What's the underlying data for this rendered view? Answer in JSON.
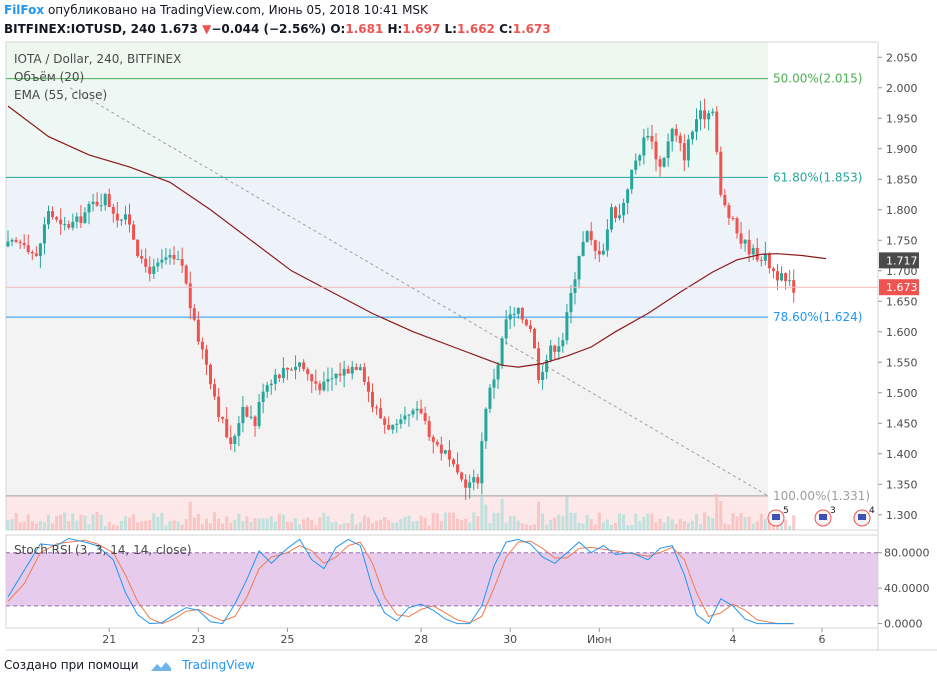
{
  "header": {
    "brand": "FilFox",
    "published": "опубликовано на TradingView.com, Июнь 05, 2018 10:41 MSK",
    "symbol_line": "BITFINEX:IOTUSD, 240",
    "last": "1.673",
    "change": "−0.044 (−2.56%)",
    "o_label": "O:",
    "o_val": "1.681",
    "h_label": "H:",
    "h_val": "1.697",
    "l_label": "L:",
    "l_val": "1.662",
    "c_label": "C:",
    "c_val": "1.673"
  },
  "legend": {
    "title": "IOTA / Dollar, 240, BITFINEX",
    "volume": "Объём (20)",
    "ema": "EMA (55, close)",
    "rsi": "Stoch RSI (3, 3, 14, 14, close)"
  },
  "footer": {
    "created": "Создано при помощи",
    "tradingview": "TradingView"
  },
  "chart_data": {
    "type": "candlestick",
    "price_axis": {
      "ylim": [
        1.275,
        2.075
      ],
      "ticks": [
        "2.050",
        "2.000",
        "1.950",
        "1.900",
        "1.850",
        "1.800",
        "1.750",
        "1.700",
        "1.650",
        "1.600",
        "1.550",
        "1.500",
        "1.450",
        "1.400",
        "1.350",
        "1.300"
      ]
    },
    "rsi_axis": {
      "ylim": [
        -5,
        100
      ],
      "ticks": [
        "80.0000",
        "40.0000",
        "0.0000"
      ],
      "band": [
        20,
        80
      ]
    },
    "x_ticks": [
      {
        "label": "21",
        "i": 25
      },
      {
        "label": "23",
        "i": 47
      },
      {
        "label": "25",
        "i": 69
      },
      {
        "label": "28",
        "i": 102
      },
      {
        "label": "30",
        "i": 124
      },
      {
        "label": "Июн",
        "i": 146
      },
      {
        "label": "4",
        "i": 179
      },
      {
        "label": "6",
        "i": 201
      }
    ],
    "candle_count": 195,
    "close_keypoints": [
      [
        0,
        1.74
      ],
      [
        4,
        1.75
      ],
      [
        7,
        1.72
      ],
      [
        10,
        1.8
      ],
      [
        13,
        1.77
      ],
      [
        17,
        1.78
      ],
      [
        21,
        1.81
      ],
      [
        24,
        1.82
      ],
      [
        27,
        1.79
      ],
      [
        30,
        1.78
      ],
      [
        33,
        1.71
      ],
      [
        36,
        1.7
      ],
      [
        39,
        1.72
      ],
      [
        43,
        1.71
      ],
      [
        46,
        1.61
      ],
      [
        49,
        1.55
      ],
      [
        52,
        1.47
      ],
      [
        55,
        1.41
      ],
      [
        58,
        1.48
      ],
      [
        61,
        1.45
      ],
      [
        63,
        1.51
      ],
      [
        66,
        1.53
      ],
      [
        69,
        1.54
      ],
      [
        72,
        1.55
      ],
      [
        75,
        1.52
      ],
      [
        78,
        1.51
      ],
      [
        81,
        1.53
      ],
      [
        84,
        1.54
      ],
      [
        87,
        1.55
      ],
      [
        90,
        1.48
      ],
      [
        93,
        1.45
      ],
      [
        96,
        1.44
      ],
      [
        99,
        1.46
      ],
      [
        102,
        1.47
      ],
      [
        105,
        1.42
      ],
      [
        108,
        1.4
      ],
      [
        111,
        1.36
      ],
      [
        114,
        1.35
      ],
      [
        116,
        1.36
      ],
      [
        118,
        1.48
      ],
      [
        121,
        1.55
      ],
      [
        123,
        1.62
      ],
      [
        126,
        1.63
      ],
      [
        129,
        1.61
      ],
      [
        131,
        1.53
      ],
      [
        134,
        1.57
      ],
      [
        137,
        1.59
      ],
      [
        139,
        1.66
      ],
      [
        141,
        1.73
      ],
      [
        143,
        1.76
      ],
      [
        145,
        1.73
      ],
      [
        147,
        1.74
      ],
      [
        149,
        1.8
      ],
      [
        151,
        1.79
      ],
      [
        153,
        1.84
      ],
      [
        155,
        1.88
      ],
      [
        158,
        1.93
      ],
      [
        161,
        1.87
      ],
      [
        164,
        1.93
      ],
      [
        167,
        1.89
      ],
      [
        170,
        1.95
      ],
      [
        173,
        1.96
      ],
      [
        174,
        1.97
      ],
      [
        176,
        1.82
      ],
      [
        178,
        1.79
      ],
      [
        181,
        1.75
      ],
      [
        184,
        1.73
      ],
      [
        187,
        1.72
      ],
      [
        189,
        1.7
      ],
      [
        192,
        1.68
      ],
      [
        194,
        1.673
      ]
    ],
    "ema_keypoints": [
      [
        0,
        1.97
      ],
      [
        10,
        1.92
      ],
      [
        20,
        1.89
      ],
      [
        30,
        1.87
      ],
      [
        40,
        1.845
      ],
      [
        50,
        1.8
      ],
      [
        60,
        1.75
      ],
      [
        70,
        1.7
      ],
      [
        80,
        1.665
      ],
      [
        90,
        1.63
      ],
      [
        100,
        1.6
      ],
      [
        110,
        1.575
      ],
      [
        118,
        1.555
      ],
      [
        122,
        1.545
      ],
      [
        126,
        1.542
      ],
      [
        132,
        1.548
      ],
      [
        138,
        1.56
      ],
      [
        144,
        1.575
      ],
      [
        150,
        1.6
      ],
      [
        158,
        1.63
      ],
      [
        166,
        1.665
      ],
      [
        174,
        1.698
      ],
      [
        180,
        1.718
      ],
      [
        186,
        1.727
      ],
      [
        190,
        1.728
      ],
      [
        196,
        1.725
      ],
      [
        202,
        1.72
      ]
    ],
    "fib_levels": [
      {
        "label": "50.00%(2.015)",
        "price": 2.015,
        "color": "#4caf50",
        "fill": "#eef8ee"
      },
      {
        "label": "61.80%(1.853)",
        "price": 1.853,
        "color": "#26a69a",
        "fill": "#edf7f4"
      },
      {
        "label": "78.60%(1.624)",
        "price": 1.624,
        "color": "#2196f3",
        "fill": "#eef3fa"
      },
      {
        "label": "100.00%(1.331)",
        "price": 1.331,
        "color": "#9e9e9e",
        "fill": "#f3f3f3"
      }
    ],
    "price_labels": [
      {
        "label": "1.717",
        "price": 1.717,
        "color": "#4a4a4a"
      },
      {
        "label": "1.673",
        "price": 1.673,
        "color": "#ef5350"
      }
    ],
    "rsi_k_keypoints": [
      [
        0,
        30
      ],
      [
        4,
        60
      ],
      [
        8,
        90
      ],
      [
        12,
        88
      ],
      [
        15,
        96
      ],
      [
        19,
        92
      ],
      [
        22,
        88
      ],
      [
        26,
        72
      ],
      [
        29,
        35
      ],
      [
        32,
        10
      ],
      [
        35,
        0
      ],
      [
        38,
        1
      ],
      [
        41,
        10
      ],
      [
        44,
        18
      ],
      [
        47,
        15
      ],
      [
        50,
        2
      ],
      [
        53,
        0
      ],
      [
        56,
        22
      ],
      [
        59,
        50
      ],
      [
        62,
        82
      ],
      [
        65,
        68
      ],
      [
        69,
        85
      ],
      [
        72,
        95
      ],
      [
        75,
        72
      ],
      [
        78,
        62
      ],
      [
        81,
        86
      ],
      [
        84,
        95
      ],
      [
        87,
        88
      ],
      [
        90,
        40
      ],
      [
        93,
        12
      ],
      [
        96,
        3
      ],
      [
        99,
        18
      ],
      [
        102,
        22
      ],
      [
        105,
        15
      ],
      [
        108,
        5
      ],
      [
        111,
        0
      ],
      [
        114,
        0
      ],
      [
        117,
        20
      ],
      [
        120,
        65
      ],
      [
        123,
        92
      ],
      [
        126,
        95
      ],
      [
        129,
        90
      ],
      [
        132,
        75
      ],
      [
        135,
        68
      ],
      [
        138,
        80
      ],
      [
        141,
        92
      ],
      [
        144,
        80
      ],
      [
        147,
        88
      ],
      [
        150,
        78
      ],
      [
        154,
        80
      ],
      [
        158,
        72
      ],
      [
        161,
        85
      ],
      [
        164,
        88
      ],
      [
        167,
        55
      ],
      [
        170,
        10
      ],
      [
        173,
        0
      ],
      [
        176,
        28
      ],
      [
        179,
        20
      ],
      [
        182,
        5
      ],
      [
        185,
        0
      ],
      [
        190,
        0
      ],
      [
        194,
        0
      ]
    ],
    "rsi_d_keypoints": [
      [
        0,
        25
      ],
      [
        4,
        45
      ],
      [
        8,
        80
      ],
      [
        12,
        90
      ],
      [
        15,
        92
      ],
      [
        19,
        94
      ],
      [
        22,
        90
      ],
      [
        26,
        80
      ],
      [
        29,
        55
      ],
      [
        32,
        25
      ],
      [
        35,
        6
      ],
      [
        38,
        0
      ],
      [
        41,
        5
      ],
      [
        44,
        14
      ],
      [
        47,
        16
      ],
      [
        50,
        9
      ],
      [
        53,
        3
      ],
      [
        56,
        8
      ],
      [
        59,
        30
      ],
      [
        62,
        62
      ],
      [
        65,
        75
      ],
      [
        69,
        80
      ],
      [
        72,
        88
      ],
      [
        75,
        82
      ],
      [
        78,
        68
      ],
      [
        81,
        75
      ],
      [
        84,
        88
      ],
      [
        87,
        92
      ],
      [
        90,
        68
      ],
      [
        93,
        30
      ],
      [
        96,
        10
      ],
      [
        99,
        8
      ],
      [
        102,
        16
      ],
      [
        105,
        20
      ],
      [
        108,
        12
      ],
      [
        111,
        4
      ],
      [
        114,
        1
      ],
      [
        117,
        8
      ],
      [
        120,
        40
      ],
      [
        123,
        75
      ],
      [
        126,
        92
      ],
      [
        129,
        93
      ],
      [
        132,
        85
      ],
      [
        135,
        74
      ],
      [
        138,
        74
      ],
      [
        141,
        85
      ],
      [
        144,
        86
      ],
      [
        147,
        84
      ],
      [
        150,
        82
      ],
      [
        154,
        79
      ],
      [
        158,
        76
      ],
      [
        161,
        80
      ],
      [
        164,
        86
      ],
      [
        167,
        72
      ],
      [
        170,
        35
      ],
      [
        173,
        8
      ],
      [
        176,
        12
      ],
      [
        179,
        22
      ],
      [
        182,
        15
      ],
      [
        185,
        4
      ],
      [
        190,
        0
      ],
      [
        194,
        0
      ]
    ],
    "colors": {
      "up": "#26a69a",
      "down": "#ef5350",
      "ema": "#8b1a1a",
      "rsi_k": "#2196f3",
      "rsi_d": "#ef7b50",
      "rsi_band": "#e1bee7"
    }
  }
}
